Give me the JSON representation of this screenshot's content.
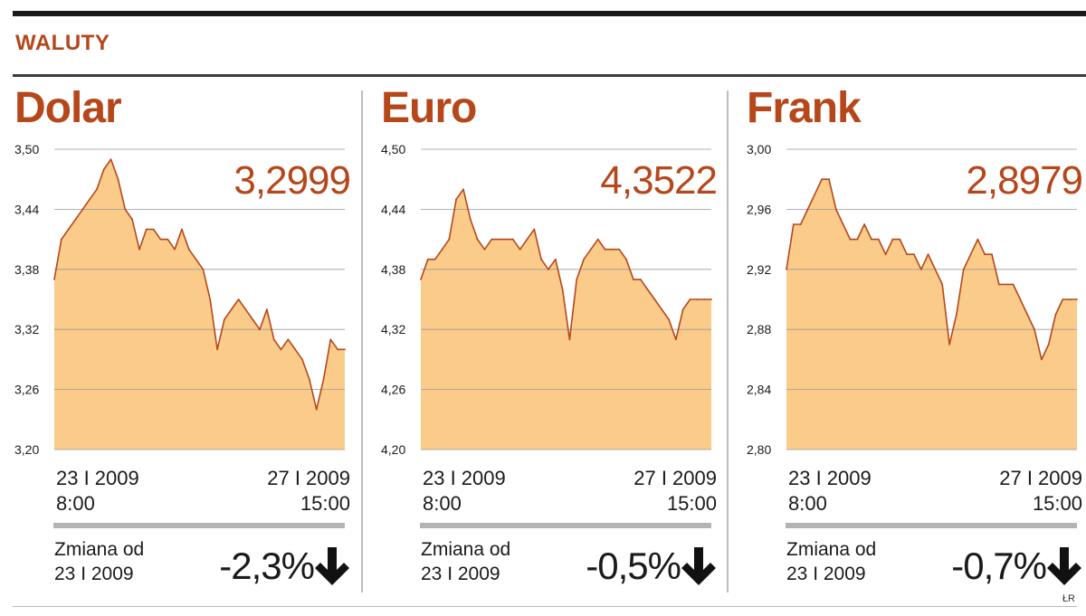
{
  "header": {
    "title": "WALUTY"
  },
  "credit": "ŁR",
  "chart_data": [
    {
      "type": "area",
      "title": "Dolar",
      "current_value": "3,2999",
      "ylim": [
        3.2,
        3.5
      ],
      "yticks": [
        "3,50",
        "3,44",
        "3,38",
        "3,32",
        "3,26",
        "3,20"
      ],
      "x_start": {
        "date": "23 I 2009",
        "time": "8:00"
      },
      "x_end": {
        "date": "27 I 2009",
        "time": "15:00"
      },
      "series": [
        {
          "values": [
            3.37,
            3.41,
            3.42,
            3.43,
            3.44,
            3.45,
            3.46,
            3.48,
            3.49,
            3.47,
            3.44,
            3.43,
            3.4,
            3.42,
            3.42,
            3.41,
            3.41,
            3.4,
            3.42,
            3.4,
            3.39,
            3.38,
            3.35,
            3.3,
            3.33,
            3.34,
            3.35,
            3.34,
            3.33,
            3.32,
            3.34,
            3.31,
            3.3,
            3.31,
            3.3,
            3.29,
            3.27,
            3.24,
            3.27,
            3.31,
            3.3,
            3.3
          ]
        }
      ],
      "change_label": {
        "line1": "Zmiana od",
        "line2": "23 I 2009"
      },
      "change_value": "-2,3%",
      "fill_color": "#fbcb89",
      "line_color": "#b5471b"
    },
    {
      "type": "area",
      "title": "Euro",
      "current_value": "4,3522",
      "ylim": [
        4.2,
        4.5
      ],
      "yticks": [
        "4,50",
        "4,44",
        "4,38",
        "4,32",
        "4,26",
        "4,20"
      ],
      "x_start": {
        "date": "23 I 2009",
        "time": "8:00"
      },
      "x_end": {
        "date": "27 I 2009",
        "time": "15:00"
      },
      "series": [
        {
          "values": [
            4.37,
            4.39,
            4.39,
            4.4,
            4.41,
            4.45,
            4.46,
            4.43,
            4.41,
            4.4,
            4.41,
            4.41,
            4.41,
            4.41,
            4.4,
            4.41,
            4.42,
            4.39,
            4.38,
            4.39,
            4.36,
            4.31,
            4.37,
            4.39,
            4.4,
            4.41,
            4.4,
            4.4,
            4.4,
            4.39,
            4.37,
            4.37,
            4.36,
            4.35,
            4.34,
            4.33,
            4.31,
            4.34,
            4.35,
            4.35,
            4.35,
            4.35
          ]
        }
      ],
      "change_label": {
        "line1": "Zmiana od",
        "line2": "23 I 2009"
      },
      "change_value": "-0,5%",
      "fill_color": "#fbcb89",
      "line_color": "#b5471b"
    },
    {
      "type": "area",
      "title": "Frank",
      "current_value": "2,8979",
      "ylim": [
        2.8,
        3.0
      ],
      "yticks": [
        "3,00",
        "2,96",
        "2,92",
        "2,88",
        "2,84",
        "2,80"
      ],
      "x_start": {
        "date": "23 I 2009",
        "time": "8:00"
      },
      "x_end": {
        "date": "27 I 2009",
        "time": "15:00"
      },
      "series": [
        {
          "values": [
            2.92,
            2.95,
            2.95,
            2.96,
            2.97,
            2.98,
            2.98,
            2.96,
            2.95,
            2.94,
            2.94,
            2.95,
            2.94,
            2.94,
            2.93,
            2.94,
            2.94,
            2.93,
            2.93,
            2.92,
            2.93,
            2.92,
            2.91,
            2.87,
            2.89,
            2.92,
            2.93,
            2.94,
            2.93,
            2.93,
            2.91,
            2.91,
            2.91,
            2.9,
            2.89,
            2.88,
            2.86,
            2.87,
            2.89,
            2.9,
            2.9,
            2.9
          ]
        }
      ],
      "change_label": {
        "line1": "Zmiana od",
        "line2": "23 I 2009"
      },
      "change_value": "-0,7%",
      "fill_color": "#fbcb89",
      "line_color": "#b5471b"
    }
  ]
}
